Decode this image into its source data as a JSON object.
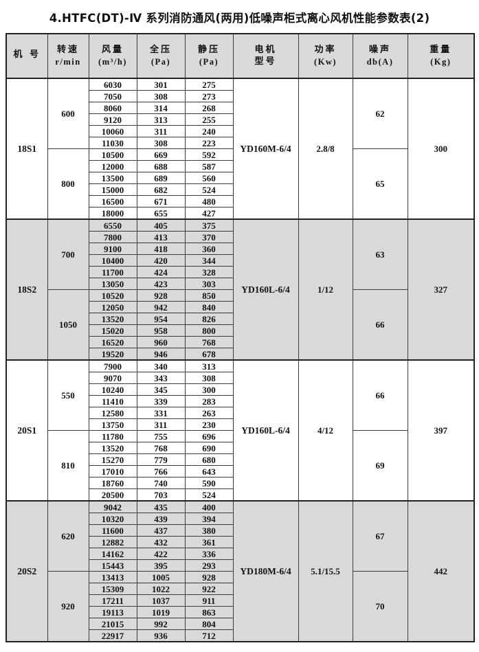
{
  "title": "4.HTFC(DT)-Ⅳ 系列消防通风(两用)低噪声柜式离心风机性能参数表(2)",
  "colors": {
    "shaded_bg": "#d9d9d9",
    "header_bg": "#d9d9d9",
    "border": "#3a3a3a",
    "heavy_border": "#222222",
    "text": "#111111",
    "page_bg": "#ffffff"
  },
  "table": {
    "headers": [
      {
        "label": "机 号",
        "unit": ""
      },
      {
        "label": "转速",
        "unit": "r/min"
      },
      {
        "label": "风量",
        "unit": "(m³/h)"
      },
      {
        "label": "全压",
        "unit": "(Pa)"
      },
      {
        "label": "静压",
        "unit": "(Pa)"
      },
      {
        "label": "电机",
        "unit": "型号"
      },
      {
        "label": "功率",
        "unit": "(Kw)"
      },
      {
        "label": "噪声",
        "unit": "db(A)"
      },
      {
        "label": "重量",
        "unit": "(Kg)"
      }
    ],
    "column_meaning": [
      "fan_model",
      "speed_rpm",
      "airflow_m3h",
      "total_pressure_pa",
      "static_pressure_pa",
      "motor_model",
      "power_kw",
      "noise_dbA",
      "weight_kg"
    ],
    "blocks": [
      {
        "model": "18S1",
        "motor": "YD160M-6/4",
        "power": "2.8/8",
        "weight": "300",
        "shaded": false,
        "groups": [
          {
            "speed": "600",
            "noise": "62",
            "rows": [
              [
                "6030",
                "301",
                "275"
              ],
              [
                "7050",
                "308",
                "273"
              ],
              [
                "8060",
                "314",
                "268"
              ],
              [
                "9120",
                "313",
                "255"
              ],
              [
                "10060",
                "311",
                "240"
              ],
              [
                "11030",
                "308",
                "223"
              ]
            ]
          },
          {
            "speed": "800",
            "noise": "65",
            "rows": [
              [
                "10500",
                "669",
                "592"
              ],
              [
                "12000",
                "688",
                "587"
              ],
              [
                "13500",
                "689",
                "560"
              ],
              [
                "15000",
                "682",
                "524"
              ],
              [
                "16500",
                "671",
                "480"
              ],
              [
                "18000",
                "655",
                "427"
              ]
            ]
          }
        ]
      },
      {
        "model": "18S2",
        "motor": "YD160L-6/4",
        "power": "1/12",
        "weight": "327",
        "shaded": true,
        "groups": [
          {
            "speed": "700",
            "noise": "63",
            "rows": [
              [
                "6550",
                "405",
                "375"
              ],
              [
                "7800",
                "413",
                "370"
              ],
              [
                "9100",
                "418",
                "360"
              ],
              [
                "10400",
                "420",
                "344"
              ],
              [
                "11700",
                "424",
                "328"
              ],
              [
                "13050",
                "423",
                "303"
              ]
            ]
          },
          {
            "speed": "1050",
            "noise": "66",
            "rows": [
              [
                "10520",
                "928",
                "850"
              ],
              [
                "12050",
                "942",
                "840"
              ],
              [
                "13520",
                "954",
                "826"
              ],
              [
                "15020",
                "958",
                "800"
              ],
              [
                "16520",
                "960",
                "768"
              ],
              [
                "19520",
                "946",
                "678"
              ]
            ]
          }
        ]
      },
      {
        "model": "20S1",
        "motor": "YD160L-6/4",
        "power": "4/12",
        "weight": "397",
        "shaded": false,
        "groups": [
          {
            "speed": "550",
            "noise": "66",
            "rows": [
              [
                "7900",
                "340",
                "313"
              ],
              [
                "9070",
                "343",
                "308"
              ],
              [
                "10240",
                "345",
                "300"
              ],
              [
                "11410",
                "339",
                "283"
              ],
              [
                "12580",
                "331",
                "263"
              ],
              [
                "13750",
                "311",
                "230"
              ]
            ]
          },
          {
            "speed": "810",
            "noise": "69",
            "rows": [
              [
                "11780",
                "755",
                "696"
              ],
              [
                "13520",
                "768",
                "690"
              ],
              [
                "15270",
                "779",
                "680"
              ],
              [
                "17010",
                "766",
                "643"
              ],
              [
                "18760",
                "740",
                "590"
              ],
              [
                "20500",
                "703",
                "524"
              ]
            ]
          }
        ]
      },
      {
        "model": "20S2",
        "motor": "YD180M-6/4",
        "power": "5.1/15.5",
        "weight": "442",
        "shaded": true,
        "groups": [
          {
            "speed": "620",
            "noise": "67",
            "rows": [
              [
                "9042",
                "435",
                "400"
              ],
              [
                "10320",
                "439",
                "394"
              ],
              [
                "11600",
                "437",
                "380"
              ],
              [
                "12882",
                "432",
                "361"
              ],
              [
                "14162",
                "422",
                "336"
              ],
              [
                "15443",
                "395",
                "293"
              ]
            ]
          },
          {
            "speed": "920",
            "noise": "70",
            "rows": [
              [
                "13413",
                "1005",
                "928"
              ],
              [
                "15309",
                "1022",
                "922"
              ],
              [
                "17211",
                "1037",
                "911"
              ],
              [
                "19113",
                "1019",
                "863"
              ],
              [
                "21015",
                "992",
                "804"
              ],
              [
                "22917",
                "936",
                "712"
              ]
            ]
          }
        ]
      }
    ]
  }
}
